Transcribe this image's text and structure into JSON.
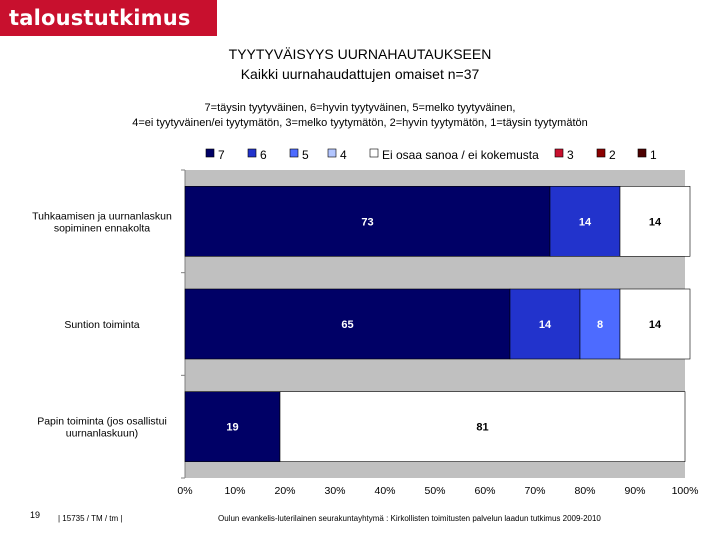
{
  "brand": {
    "logo_text": "taloustutkimus oy"
  },
  "header": {
    "title_line1": "TYYTYVÄISYYS UURNAHAUTAUKSEEN",
    "title_line2": "Kaikki  uurnahaudattujen omaiset n=37",
    "scale_line1": "7=täysin tyytyväinen, 6=hyvin tyytyväinen, 5=melko tyytyväinen,",
    "scale_line2": "4=ei tyytyväinen/ei tyytymätön, 3=melko tyytymätön, 2=hyvin tyytymätön, 1=täysin tyytymätön"
  },
  "footer": {
    "page_number": "19",
    "code": "| 15735 / TM / tm |",
    "source": "Oulun evankelis-luterilainen seurakuntayhtymä : Kirkollisten toimitusten palvelun laadun tutkimus 2009-2010"
  },
  "chart_data": {
    "type": "bar",
    "orientation": "horizontal",
    "stacked": true,
    "categories": [
      [
        "Tuhkaamisen ja uurnanlaskun",
        "sopiminen ennakolta"
      ],
      [
        "Suntion toiminta"
      ],
      [
        "Papin toiminta (jos osallistui",
        "uurnanlaskuun)"
      ]
    ],
    "series": [
      {
        "name": "7",
        "color": "#000066",
        "values": [
          73,
          65,
          19
        ],
        "labels": [
          "73",
          "65",
          "19"
        ],
        "label_color": "#ffffff"
      },
      {
        "name": "6",
        "color": "#2233cc",
        "values": [
          14,
          14,
          0
        ],
        "labels": [
          "14",
          "14",
          ""
        ],
        "label_color": "#ffffff"
      },
      {
        "name": "5",
        "color": "#4d6bff",
        "values": [
          0,
          8,
          0
        ],
        "labels": [
          "",
          "8",
          ""
        ],
        "label_color": "#ffffff"
      },
      {
        "name": "4",
        "color": "#b3c6ff",
        "values": [
          0,
          0,
          0
        ],
        "labels": [
          "",
          "",
          ""
        ],
        "label_color": "#000000"
      },
      {
        "name": "Ei osaa sanoa / ei kokemusta",
        "color": "#ffffff",
        "values": [
          14,
          14,
          81
        ],
        "labels": [
          "14",
          "14",
          "81"
        ],
        "label_color": "#000000"
      },
      {
        "name": "3",
        "color": "#c8102e",
        "values": [
          0,
          0,
          0
        ],
        "labels": [
          "",
          "",
          ""
        ],
        "label_color": "#ffffff"
      },
      {
        "name": "2",
        "color": "#8b0000",
        "values": [
          0,
          0,
          0
        ],
        "labels": [
          "",
          "",
          ""
        ],
        "label_color": "#ffffff"
      },
      {
        "name": "1",
        "color": "#4d0000",
        "values": [
          0,
          0,
          0
        ],
        "labels": [
          "",
          "",
          ""
        ],
        "label_color": "#ffffff"
      }
    ],
    "xlim": [
      0,
      100
    ],
    "xticks": [
      "0%",
      "10%",
      "20%",
      "30%",
      "40%",
      "50%",
      "60%",
      "70%",
      "80%",
      "90%",
      "100%"
    ],
    "plot_background": "#c0c0c0",
    "legend_position": "top"
  }
}
